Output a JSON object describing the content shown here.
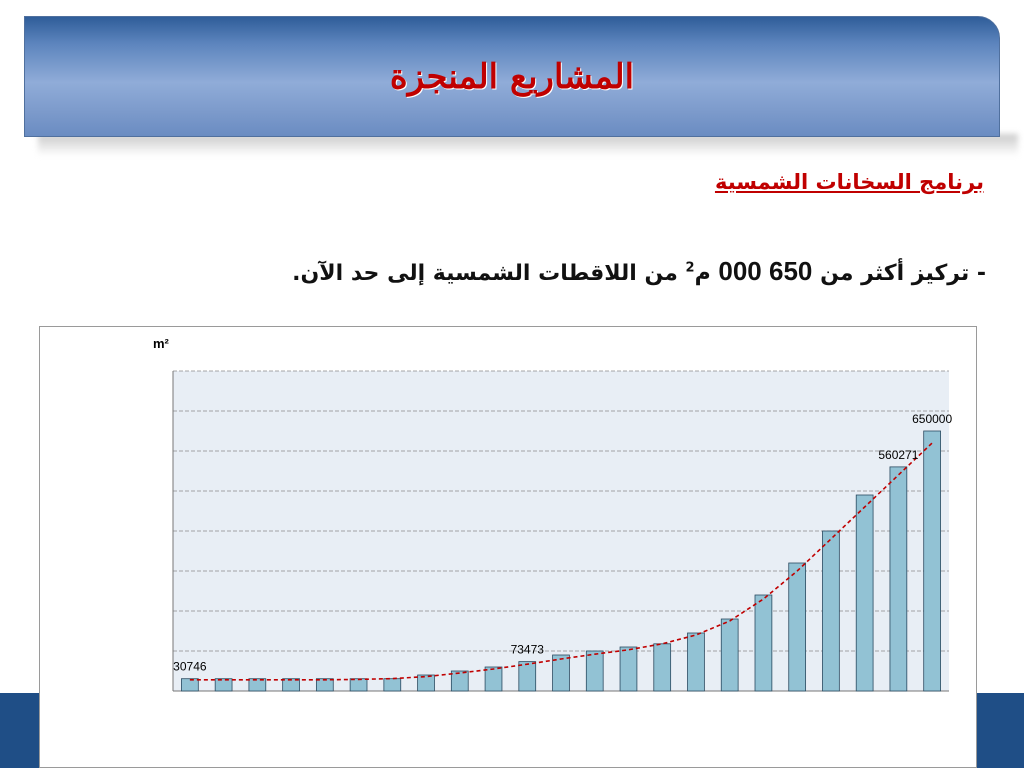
{
  "header": {
    "title": "المشاريع المنجزة"
  },
  "section": {
    "subtitle": "برنامج السخانات الشمسية",
    "bullet_prefix": "- تركيز أكثر من ",
    "bullet_number": "650 000",
    "bullet_unit": " م",
    "bullet_unit_sup": "2",
    "bullet_suffix": " من اللاقطات الشمسية إلى حد الآن."
  },
  "colors": {
    "title_red": "#c00000",
    "bar_fill": "#92c2d4",
    "bar_stroke": "#2a4a60",
    "plot_bg": "#e8eef5",
    "trend_line": "#c00000",
    "bottom_band": "#1f4e86"
  },
  "chart_data": {
    "type": "bar",
    "unit_label": "m²",
    "ylim": [
      0,
      800000
    ],
    "grid": true,
    "values": [
      30746,
      30746,
      30746,
      30746,
      30746,
      30746,
      30746,
      40000,
      50000,
      60000,
      73473,
      90000,
      100000,
      110000,
      118000,
      145000,
      180000,
      240000,
      320000,
      400000,
      490000,
      560271,
      650000
    ],
    "data_labels": [
      {
        "index": 0,
        "text": "30746"
      },
      {
        "index": 10,
        "text": "73473"
      },
      {
        "index": 21,
        "text": "560271"
      },
      {
        "index": 22,
        "text": "650000"
      }
    ],
    "trend_values": [
      28000,
      28000,
      28000,
      28000,
      28000,
      29000,
      31000,
      36000,
      45000,
      55000,
      67000,
      80000,
      92000,
      103000,
      118000,
      140000,
      175000,
      230000,
      300000,
      380000,
      460000,
      540000,
      620000
    ],
    "trend_style": "dashed"
  }
}
